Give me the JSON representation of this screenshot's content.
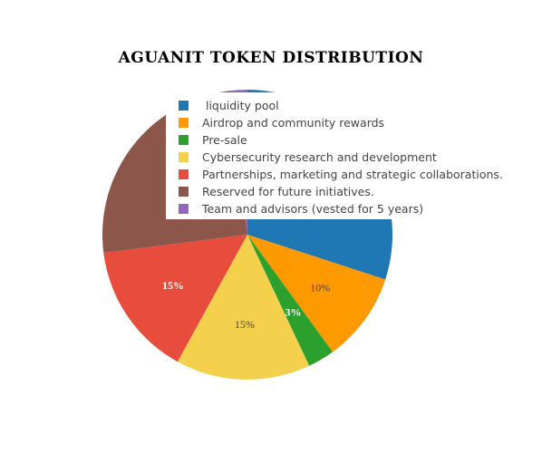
{
  "chart_data": {
    "type": "pie",
    "title": "AGUANIT TOKEN DISTRIBUTION",
    "categories": [
      " liquidity pool",
      "Airdrop and community rewards",
      "Pre-sale",
      "Cybersecurity research and development",
      "Partnerships, marketing and strategic collaborations.",
      "Reserved for future initiatives.",
      "Team and advisors (vested for 5 years)"
    ],
    "values": [
      30,
      10,
      3,
      15,
      15,
      25,
      2
    ],
    "labels": [
      "",
      "10%",
      "3%",
      "15%",
      "15%",
      "",
      ""
    ],
    "colors": [
      "#1f77b4",
      "#ff9900",
      "#2ca02c",
      "#f4d04c",
      "#e74c3c",
      "#8c564b",
      "#9467bd"
    ],
    "label_colors": [
      "#ffffff",
      "#444444",
      "#ffffff",
      "#444444",
      "#ffffff",
      "#ffffff",
      "#ffffff"
    ],
    "legend_position": "top-right"
  }
}
